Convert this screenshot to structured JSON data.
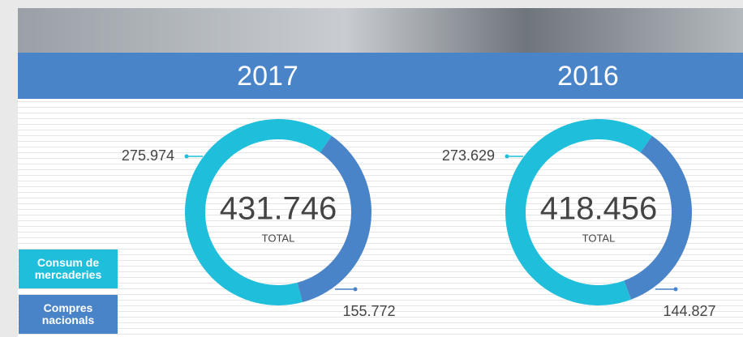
{
  "chart_data": [
    {
      "type": "donut",
      "title": "2017",
      "categories": [
        "Consum de mercaderies",
        "Compres nacionals"
      ],
      "values": [
        275974,
        155772
      ],
      "value_labels": [
        "275.974",
        "155.772"
      ],
      "colors": [
        "#1fbfdc",
        "#4a84c8"
      ],
      "center_value": "431.746",
      "center_caption": "TOTAL"
    },
    {
      "type": "donut",
      "title": "2016",
      "categories": [
        "Consum de mercaderies",
        "Compres nacionals"
      ],
      "values": [
        273629,
        144827
      ],
      "value_labels": [
        "273.629",
        "144.827"
      ],
      "colors": [
        "#1fbfdc",
        "#4a84c8"
      ],
      "center_value": "418.456",
      "center_caption": "TOTAL"
    }
  ]
}
